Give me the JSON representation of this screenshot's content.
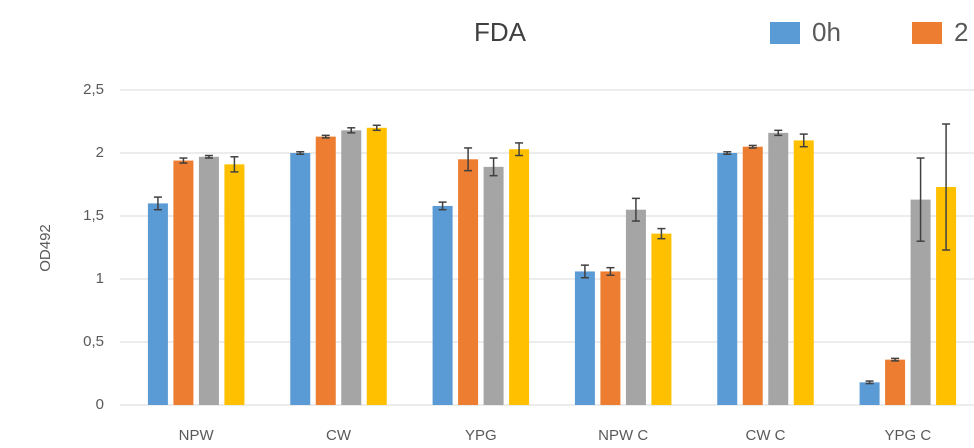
{
  "chart_data": {
    "type": "bar",
    "title": "FDA",
    "y_label": "OD492",
    "categories": [
      "NPW",
      "CW",
      "YPG",
      "NPW C",
      "CW C",
      "YPG C"
    ],
    "series": [
      {
        "name": "0h",
        "color": "#5b9bd5",
        "values": [
          1.6,
          2.0,
          1.58,
          1.06,
          2.0,
          0.18
        ],
        "errors": [
          0.05,
          0.01,
          0.03,
          0.05,
          0.01,
          0.01
        ]
      },
      {
        "name": "2",
        "color": "#ed7d31",
        "values": [
          1.94,
          2.13,
          1.95,
          1.06,
          2.05,
          0.36
        ],
        "errors": [
          0.02,
          0.01,
          0.09,
          0.03,
          0.01,
          0.01
        ]
      },
      {
        "color": "#a5a5a5",
        "values": [
          1.97,
          2.18,
          1.89,
          1.55,
          2.16,
          1.63
        ],
        "errors": [
          0.01,
          0.02,
          0.07,
          0.09,
          0.02,
          0.33
        ]
      },
      {
        "color": "#ffc000",
        "values": [
          1.91,
          2.2,
          2.03,
          1.36,
          2.1,
          1.73
        ],
        "errors": [
          0.06,
          0.02,
          0.05,
          0.04,
          0.05,
          0.5
        ]
      }
    ],
    "ylim": [
      0,
      2.5
    ],
    "yticks": [
      0,
      {
        "value": 0.5,
        "label": "0,5"
      },
      1,
      {
        "value": 1.5,
        "label": "1,5"
      },
      2,
      {
        "value": 2.5,
        "label": "2,5"
      }
    ],
    "grid": true
  }
}
